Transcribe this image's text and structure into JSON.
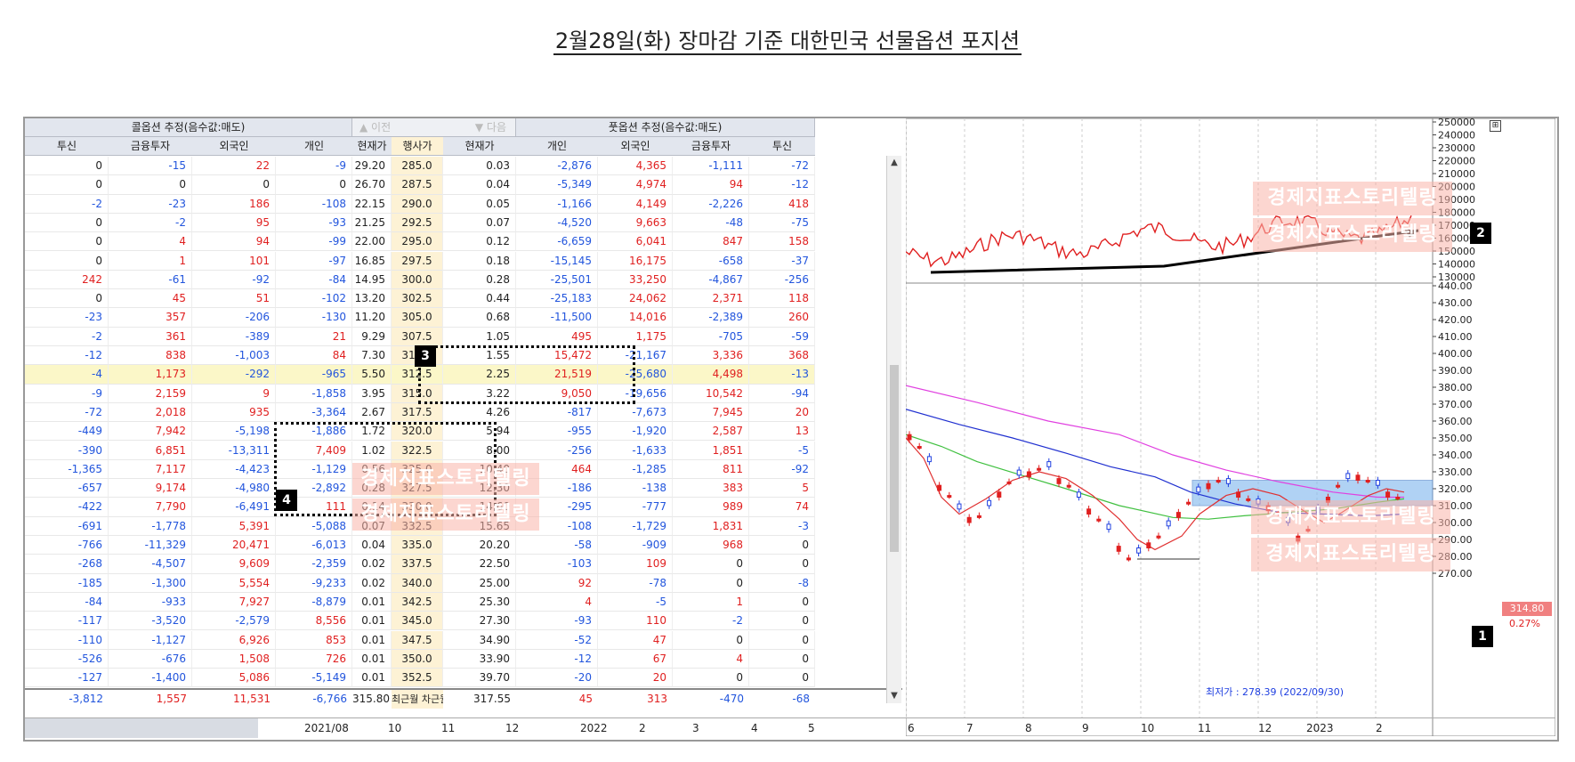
{
  "title": "2월28일(화) 장마감 기준 대한민국 선물옵션 포지션",
  "table": {
    "call_group": "콜옵션 추정(음수값:매도)",
    "put_group": "풋옵션 추정(음수값:매도)",
    "prev_label": "이전",
    "next_label": "다음",
    "headers": [
      "투신",
      "금융투자",
      "외국인",
      "개인",
      "현재가",
      "행사가",
      "현재가",
      "개인",
      "외국인",
      "금융투자",
      "투신"
    ],
    "rows": [
      [
        "0",
        "-15",
        "22",
        "-9",
        "29.20",
        "285.0",
        "0.03",
        "-2,876",
        "4,365",
        "-1,111",
        "-72"
      ],
      [
        "0",
        "0",
        "0",
        "0",
        "26.70",
        "287.5",
        "0.04",
        "-5,349",
        "4,974",
        "94",
        "-12"
      ],
      [
        "-2",
        "-23",
        "186",
        "-108",
        "22.15",
        "290.0",
        "0.05",
        "-1,166",
        "4,149",
        "-2,226",
        "418"
      ],
      [
        "0",
        "-2",
        "95",
        "-93",
        "21.25",
        "292.5",
        "0.07",
        "-4,520",
        "9,663",
        "-48",
        "-75"
      ],
      [
        "0",
        "4",
        "94",
        "-99",
        "22.00",
        "295.0",
        "0.12",
        "-6,659",
        "6,041",
        "847",
        "158"
      ],
      [
        "0",
        "1",
        "101",
        "-97",
        "16.85",
        "297.5",
        "0.18",
        "-15,145",
        "16,175",
        "-658",
        "-37"
      ],
      [
        "242",
        "-61",
        "-92",
        "-84",
        "14.95",
        "300.0",
        "0.28",
        "-25,501",
        "33,250",
        "-4,867",
        "-256"
      ],
      [
        "0",
        "45",
        "51",
        "-102",
        "13.20",
        "302.5",
        "0.44",
        "-25,183",
        "24,062",
        "2,371",
        "118"
      ],
      [
        "-23",
        "357",
        "-206",
        "-130",
        "11.20",
        "305.0",
        "0.68",
        "-11,500",
        "14,016",
        "-2,389",
        "260"
      ],
      [
        "-2",
        "361",
        "-389",
        "21",
        "9.29",
        "307.5",
        "1.05",
        "495",
        "1,175",
        "-705",
        "-59"
      ],
      [
        "-12",
        "838",
        "-1,003",
        "84",
        "7.30",
        "310.0",
        "1.55",
        "15,472",
        "-21,167",
        "3,336",
        "368"
      ],
      [
        "-4",
        "1,173",
        "-292",
        "-965",
        "5.50",
        "312.5",
        "2.25",
        "21,519",
        "-25,680",
        "4,498",
        "-13"
      ],
      [
        "-9",
        "2,159",
        "9",
        "-1,858",
        "3.95",
        "315.0",
        "3.22",
        "9,050",
        "-19,656",
        "10,542",
        "-94"
      ],
      [
        "-72",
        "2,018",
        "935",
        "-3,364",
        "2.67",
        "317.5",
        "4.26",
        "-817",
        "-7,673",
        "7,945",
        "20"
      ],
      [
        "-449",
        "7,942",
        "-5,198",
        "-1,886",
        "1.72",
        "320.0",
        "5.94",
        "-955",
        "-1,920",
        "2,587",
        "13"
      ],
      [
        "-390",
        "6,851",
        "-13,311",
        "7,409",
        "1.02",
        "322.5",
        "8.00",
        "-256",
        "-1,633",
        "1,851",
        "-5"
      ],
      [
        "-1,365",
        "7,117",
        "-4,423",
        "-1,129",
        "0.56",
        "325.0",
        "10.40",
        "464",
        "-1,285",
        "811",
        "-92"
      ],
      [
        "-657",
        "9,174",
        "-4,980",
        "-2,892",
        "0.28",
        "327.5",
        "12.30",
        "-186",
        "-138",
        "383",
        "5"
      ],
      [
        "-422",
        "7,790",
        "-6,491",
        "111",
        "0.14",
        "330.0",
        "14.60",
        "-295",
        "-777",
        "989",
        "74"
      ],
      [
        "-691",
        "-1,778",
        "5,391",
        "-5,088",
        "0.07",
        "332.5",
        "15.65",
        "-108",
        "-1,729",
        "1,831",
        "-3"
      ],
      [
        "-766",
        "-11,329",
        "20,471",
        "-6,013",
        "0.04",
        "335.0",
        "20.20",
        "-58",
        "-909",
        "968",
        "0"
      ],
      [
        "-268",
        "-4,507",
        "9,609",
        "-2,359",
        "0.02",
        "337.5",
        "22.50",
        "-103",
        "109",
        "0",
        "0"
      ],
      [
        "-185",
        "-1,300",
        "5,554",
        "-9,233",
        "0.02",
        "340.0",
        "25.00",
        "92",
        "-78",
        "0",
        "-8"
      ],
      [
        "-84",
        "-933",
        "7,927",
        "-8,879",
        "0.01",
        "342.5",
        "25.30",
        "4",
        "-5",
        "1",
        "0"
      ],
      [
        "-117",
        "-3,520",
        "-2,579",
        "8,556",
        "0.01",
        "345.0",
        "27.30",
        "-93",
        "110",
        "-2",
        "0"
      ],
      [
        "-110",
        "-1,127",
        "6,926",
        "853",
        "0.01",
        "347.5",
        "34.90",
        "-52",
        "47",
        "0",
        "0"
      ],
      [
        "-526",
        "-676",
        "1,508",
        "726",
        "0.01",
        "350.0",
        "33.90",
        "-12",
        "67",
        "4",
        "0"
      ],
      [
        "-127",
        "-1,400",
        "5,086",
        "-5,149",
        "0.01",
        "352.5",
        "39.70",
        "-20",
        "20",
        "0",
        "0"
      ]
    ],
    "total": [
      "-3,812",
      "1,557",
      "11,531",
      "-6,766",
      "315.80",
      "최근월 차근월",
      "317.55",
      "45",
      "313",
      "-470",
      "-68"
    ]
  },
  "markers": [
    "1",
    "2",
    "3",
    "4"
  ],
  "watermark": "경제지표스토리텔링",
  "chart": {
    "current_price": "314.80",
    "change_pct": "0.27%",
    "low_label": "최저가 : 278.39 (2022/09/30)",
    "x_labels_chart": [
      "6",
      "7",
      "8",
      "9",
      "10",
      "11",
      "12",
      "2023",
      "2"
    ],
    "x_labels_table": [
      "2021/08",
      "10",
      "11",
      "12",
      "2022",
      "2",
      "3",
      "4",
      "5"
    ],
    "upper_ticks": [
      "250000",
      "240000",
      "230000",
      "220000",
      "210000",
      "200000",
      "190000",
      "180000",
      "170000",
      "160000",
      "150000",
      "140000",
      "130000"
    ],
    "lower_ticks": [
      "440.00",
      "430.00",
      "420.00",
      "410.00",
      "400.00",
      "390.00",
      "380.00",
      "370.00",
      "360.00",
      "350.00",
      "340.00",
      "330.00",
      "320.00",
      "310.00",
      "300.00",
      "290.00",
      "280.00",
      "270.00"
    ],
    "colors": {
      "up": "#e02020",
      "down": "#2040e0",
      "ma_pink": "#e040e0",
      "ma_blue": "#2030d0",
      "ma_green": "#40c040",
      "ma_red": "#e03030",
      "highlight": "#90c0f0"
    }
  }
}
